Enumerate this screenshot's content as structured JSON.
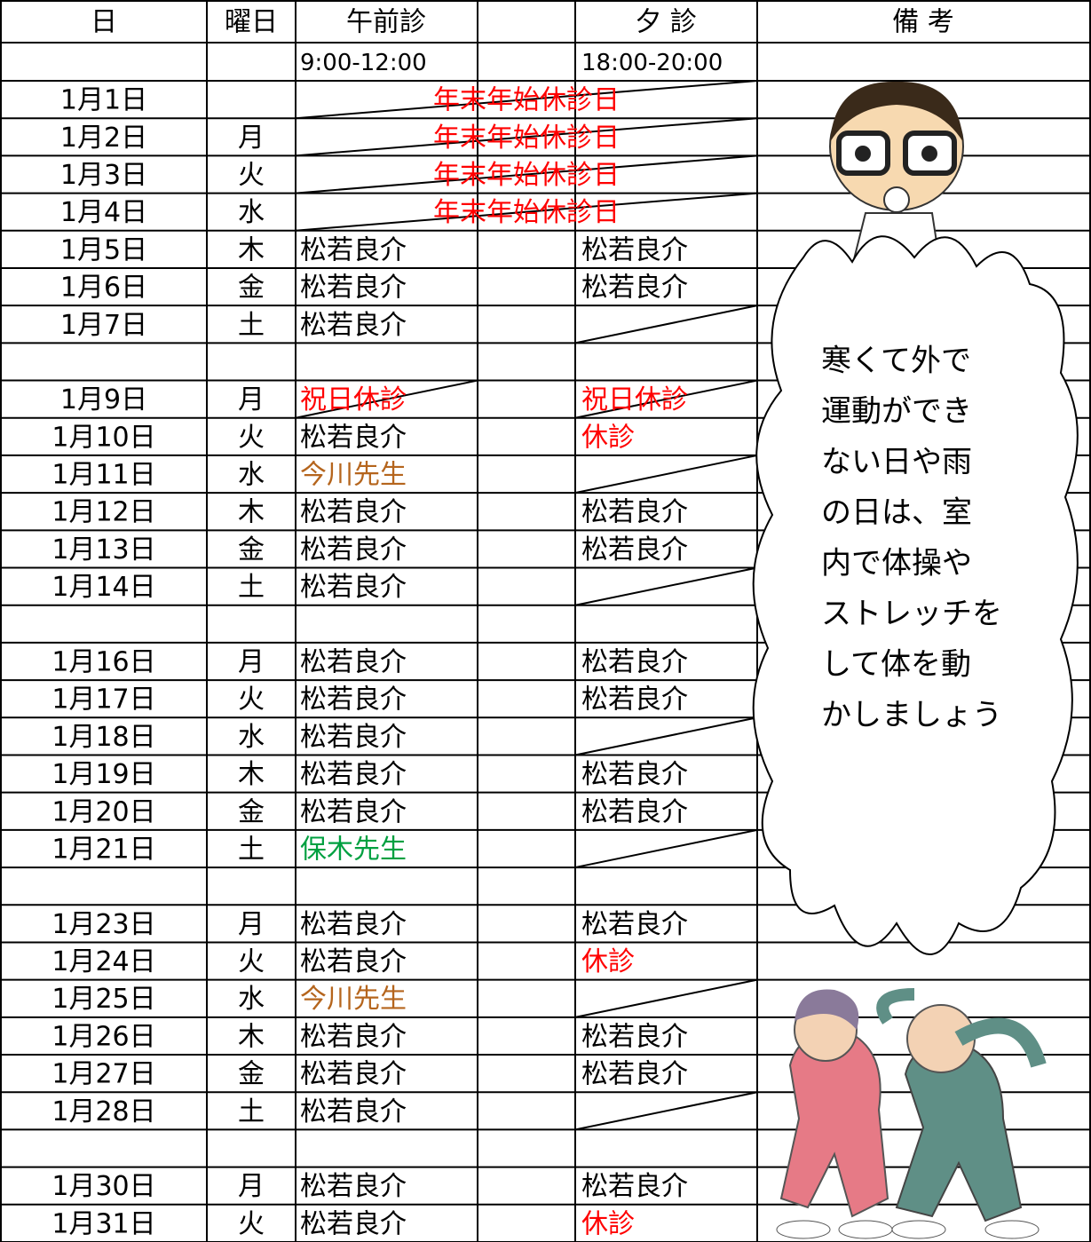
{
  "header": {
    "date": "日",
    "weekday": "曜日",
    "am": "午前診",
    "pm": "夕 診",
    "note": "備 考"
  },
  "hours": {
    "am": "9:00-12:00",
    "pm": "18:00-20:00"
  },
  "rows": [
    {
      "date": "1月1日",
      "weekday": null,
      "closed": "年末年始休診日",
      "closed_color": "#ff0000"
    },
    {
      "date": "1月2日",
      "weekday": "月",
      "closed": "年末年始休診日",
      "closed_color": "#ff0000"
    },
    {
      "date": "1月3日",
      "weekday": "火",
      "closed": "年末年始休診日",
      "closed_color": "#ff0000"
    },
    {
      "date": "1月4日",
      "weekday": "水",
      "closed": "年末年始休診日",
      "closed_color": "#ff0000"
    },
    {
      "date": "1月5日",
      "weekday": "木",
      "am": "松若良介",
      "pm": "松若良介"
    },
    {
      "date": "1月6日",
      "weekday": "金",
      "am": "松若良介",
      "pm": "松若良介"
    },
    {
      "date": "1月7日",
      "weekday": "土",
      "am": "松若良介",
      "pm": null
    },
    {
      "date": null
    },
    {
      "date": "1月9日",
      "weekday": "月",
      "am": "祝日休診",
      "am_color": "#ff0000",
      "pm": "祝日休診",
      "pm_color": "#ff0000",
      "struck": true
    },
    {
      "date": "1月10日",
      "weekday": "火",
      "am": "松若良介",
      "pm": "休診",
      "pm_color": "#ff0000"
    },
    {
      "date": "1月11日",
      "weekday": "水",
      "am": "今川先生",
      "am_color": "#b5651d",
      "pm": null
    },
    {
      "date": "1月12日",
      "weekday": "木",
      "am": "松若良介",
      "pm": "松若良介"
    },
    {
      "date": "1月13日",
      "weekday": "金",
      "am": "松若良介",
      "pm": "松若良介"
    },
    {
      "date": "1月14日",
      "weekday": "土",
      "am": "松若良介",
      "pm": null
    },
    {
      "date": null
    },
    {
      "date": "1月16日",
      "weekday": "月",
      "am": "松若良介",
      "pm": "松若良介"
    },
    {
      "date": "1月17日",
      "weekday": "火",
      "am": "松若良介",
      "pm": "松若良介"
    },
    {
      "date": "1月18日",
      "weekday": "水",
      "am": "松若良介",
      "pm": null
    },
    {
      "date": "1月19日",
      "weekday": "木",
      "am": "松若良介",
      "pm": "松若良介"
    },
    {
      "date": "1月20日",
      "weekday": "金",
      "am": "松若良介",
      "pm": "松若良介"
    },
    {
      "date": "1月21日",
      "weekday": "土",
      "am": "保木先生",
      "am_color": "#00a040",
      "pm": null
    },
    {
      "date": null
    },
    {
      "date": "1月23日",
      "weekday": "月",
      "am": "松若良介",
      "pm": "松若良介"
    },
    {
      "date": "1月24日",
      "weekday": "火",
      "am": "松若良介",
      "pm": "休診",
      "pm_color": "#ff0000"
    },
    {
      "date": "1月25日",
      "weekday": "水",
      "am": "今川先生",
      "am_color": "#b5651d",
      "pm": null
    },
    {
      "date": "1月26日",
      "weekday": "木",
      "am": "松若良介",
      "pm": "松若良介"
    },
    {
      "date": "1月27日",
      "weekday": "金",
      "am": "松若良介",
      "pm": "松若良介"
    },
    {
      "date": "1月28日",
      "weekday": "土",
      "am": "松若良介",
      "pm": null
    },
    {
      "date": null
    },
    {
      "date": "1月30日",
      "weekday": "月",
      "am": "松若良介",
      "pm": "松若良介"
    },
    {
      "date": "1月31日",
      "weekday": "火",
      "am": "松若良介",
      "pm": "休診",
      "pm_color": "#ff0000"
    }
  ],
  "note": {
    "lines": [
      "寒くて外で",
      "運動ができ",
      "ない日や雨",
      "の日は、室",
      "内で体操や",
      "ストレッチを",
      "して体を動",
      "かしましょう"
    ]
  }
}
